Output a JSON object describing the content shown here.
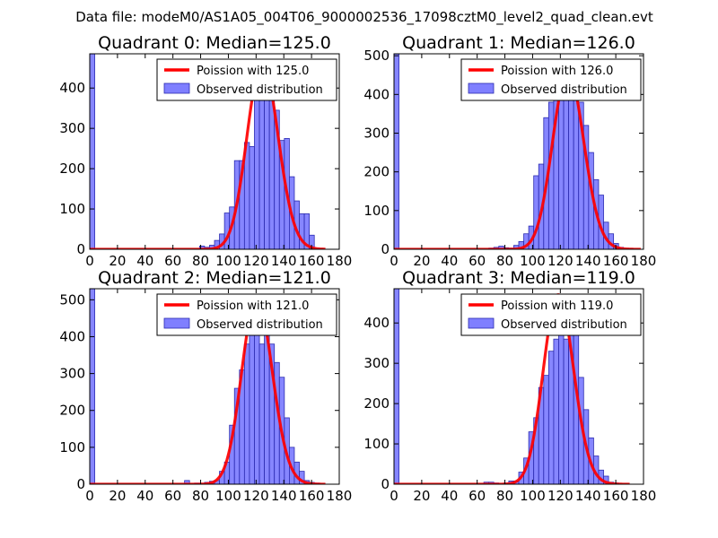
{
  "figure_title": "Data file: modeM0/AS1A05_004T06_9000002536_17098cztM0_level2_quad_clean.evt",
  "colors": {
    "poisson": "#ff0000",
    "observed_fill": "#7f7fff",
    "observed_edge": "#2b2bb0"
  },
  "chart_data": [
    {
      "type": "bar",
      "title": "Quadrant 0: Median=125.0",
      "median": 125.0,
      "xlim": [
        0,
        180
      ],
      "ylim": [
        0,
        485
      ],
      "xticks": [
        0,
        20,
        40,
        60,
        80,
        100,
        120,
        140,
        160,
        180
      ],
      "yticks": [
        0,
        100,
        200,
        300,
        400
      ],
      "legend": {
        "position": "top-right",
        "poisson_label": "Poission with 125.0",
        "observed_label": "Observed distribution"
      },
      "bin_width": 3.6,
      "bins": [
        [
          0,
          485
        ],
        [
          79.2,
          8
        ],
        [
          82.8,
          5
        ],
        [
          86.4,
          10
        ],
        [
          90,
          22
        ],
        [
          93.6,
          38
        ],
        [
          97.2,
          90
        ],
        [
          100.8,
          105
        ],
        [
          104.4,
          220
        ],
        [
          108,
          220
        ],
        [
          111.6,
          265
        ],
        [
          115.2,
          255
        ],
        [
          118.8,
          370
        ],
        [
          122.4,
          385
        ],
        [
          126,
          460
        ],
        [
          129.6,
          385
        ],
        [
          133.2,
          345
        ],
        [
          136.8,
          270
        ],
        [
          140.4,
          275
        ],
        [
          144,
          180
        ],
        [
          147.6,
          120
        ],
        [
          151.2,
          88
        ],
        [
          154.8,
          88
        ],
        [
          158.4,
          35
        ],
        [
          162,
          2
        ],
        [
          165.6,
          1
        ]
      ],
      "poisson_curve": {
        "mean": 125.0,
        "peak": 465,
        "x_range": [
          0,
          170
        ]
      }
    },
    {
      "type": "bar",
      "title": "Quadrant 1: Median=126.0",
      "median": 126.0,
      "xlim": [
        0,
        180
      ],
      "ylim": [
        0,
        505
      ],
      "xticks": [
        0,
        20,
        40,
        60,
        80,
        100,
        120,
        140,
        160,
        180
      ],
      "yticks": [
        0,
        100,
        200,
        300,
        400,
        500
      ],
      "legend": {
        "position": "top-right",
        "poisson_label": "Poission with 126.0",
        "observed_label": "Observed distribution"
      },
      "bin_width": 3.6,
      "bins": [
        [
          0,
          505
        ],
        [
          68.4,
          3
        ],
        [
          72,
          5
        ],
        [
          75.6,
          8
        ],
        [
          79.2,
          4
        ],
        [
          82.8,
          3
        ],
        [
          86.4,
          10
        ],
        [
          90,
          20
        ],
        [
          93.6,
          40
        ],
        [
          97.2,
          60
        ],
        [
          100.8,
          190
        ],
        [
          104.4,
          220
        ],
        [
          108,
          340
        ],
        [
          111.6,
          380
        ],
        [
          115.2,
          400
        ],
        [
          118.8,
          420
        ],
        [
          122.4,
          470
        ],
        [
          126,
          480
        ],
        [
          129.6,
          440
        ],
        [
          133.2,
          380
        ],
        [
          136.8,
          320
        ],
        [
          140.4,
          250
        ],
        [
          144,
          180
        ],
        [
          147.6,
          140
        ],
        [
          151.2,
          70
        ],
        [
          154.8,
          40
        ],
        [
          158.4,
          15
        ],
        [
          162,
          5
        ],
        [
          165.6,
          2
        ],
        [
          169.2,
          2
        ]
      ],
      "poisson_curve": {
        "mean": 126.0,
        "peak": 460,
        "x_range": [
          0,
          178
        ]
      }
    },
    {
      "type": "bar",
      "title": "Quadrant 2: Median=121.0",
      "median": 121.0,
      "xlim": [
        0,
        180
      ],
      "ylim": [
        0,
        530
      ],
      "xticks": [
        0,
        20,
        40,
        60,
        80,
        100,
        120,
        140,
        160,
        180
      ],
      "yticks": [
        0,
        100,
        200,
        300,
        400,
        500
      ],
      "legend": {
        "position": "top-right",
        "poisson_label": "Poission with 121.0",
        "observed_label": "Observed distribution"
      },
      "bin_width": 3.6,
      "bins": [
        [
          0,
          530
        ],
        [
          68.4,
          10
        ],
        [
          75.6,
          3
        ],
        [
          82.8,
          5
        ],
        [
          86.4,
          8
        ],
        [
          90,
          10
        ],
        [
          93.6,
          35
        ],
        [
          97.2,
          60
        ],
        [
          100.8,
          160
        ],
        [
          104.4,
          260
        ],
        [
          108,
          310
        ],
        [
          111.6,
          380
        ],
        [
          115.2,
          455
        ],
        [
          118.8,
          430
        ],
        [
          122.4,
          380
        ],
        [
          126,
          430
        ],
        [
          129.6,
          380
        ],
        [
          133.2,
          330
        ],
        [
          136.8,
          290
        ],
        [
          140.4,
          180
        ],
        [
          144,
          100
        ],
        [
          147.6,
          60
        ],
        [
          151.2,
          35
        ],
        [
          154.8,
          10
        ],
        [
          158.4,
          5
        ],
        [
          162,
          3
        ]
      ],
      "poisson_curve": {
        "mean": 121.0,
        "peak": 505,
        "x_range": [
          0,
          170
        ]
      }
    },
    {
      "type": "bar",
      "title": "Quadrant 3: Median=119.0",
      "median": 119.0,
      "xlim": [
        0,
        180
      ],
      "ylim": [
        0,
        485
      ],
      "xticks": [
        0,
        20,
        40,
        60,
        80,
        100,
        120,
        140,
        160,
        180
      ],
      "yticks": [
        0,
        100,
        200,
        300,
        400
      ],
      "legend": {
        "position": "top-right",
        "poisson_label": "Poission with 119.0",
        "observed_label": "Observed distribution"
      },
      "bin_width": 3.6,
      "bins": [
        [
          0,
          485
        ],
        [
          64.8,
          5
        ],
        [
          68.4,
          5
        ],
        [
          72,
          3
        ],
        [
          79.2,
          3
        ],
        [
          82.8,
          8
        ],
        [
          86.4,
          8
        ],
        [
          90,
          30
        ],
        [
          93.6,
          65
        ],
        [
          97.2,
          130
        ],
        [
          100.8,
          165
        ],
        [
          104.4,
          240
        ],
        [
          108,
          270
        ],
        [
          111.6,
          330
        ],
        [
          115.2,
          360
        ],
        [
          118.8,
          420
        ],
        [
          122.4,
          360
        ],
        [
          126,
          440
        ],
        [
          129.6,
          410
        ],
        [
          133.2,
          265
        ],
        [
          136.8,
          185
        ],
        [
          140.4,
          115
        ],
        [
          144,
          70
        ],
        [
          147.6,
          35
        ],
        [
          151.2,
          20
        ],
        [
          154.8,
          5
        ],
        [
          158.4,
          3
        ]
      ],
      "poisson_curve": {
        "mean": 119.0,
        "peak": 470,
        "x_range": [
          0,
          170
        ]
      }
    }
  ]
}
